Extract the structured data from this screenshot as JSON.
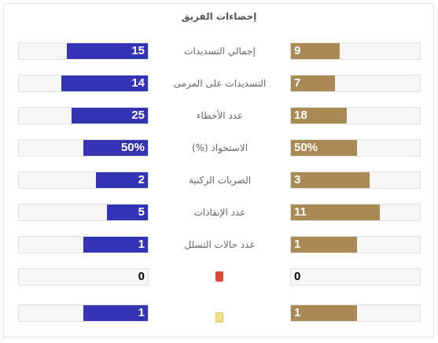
{
  "title": "إحصاءات الفريق",
  "colors": {
    "left_team": "#3333b3",
    "right_team": "#a98a55",
    "red_card": "#d94a3d",
    "yellow_card": "#f1e385"
  },
  "rows": [
    {
      "label": "إجمالي التسديدات",
      "left": "15",
      "right": "9",
      "left_fill_pct": 63,
      "right_fill_pct": 38
    },
    {
      "label": "التسديدات على المرمى",
      "left": "14",
      "right": "7",
      "left_fill_pct": 67,
      "right_fill_pct": 34
    },
    {
      "label": "عدد الأخطاء",
      "left": "25",
      "right": "18",
      "left_fill_pct": 59,
      "right_fill_pct": 43
    },
    {
      "label": "الاستحواذ (%)",
      "left": "50%",
      "right": "50%",
      "left_fill_pct": 50,
      "right_fill_pct": 51
    },
    {
      "label": "الضربات الركنية",
      "left": "2",
      "right": "3",
      "left_fill_pct": 40,
      "right_fill_pct": 61
    },
    {
      "label": "عدد الإنقاذات",
      "left": "5",
      "right": "11",
      "left_fill_pct": 32,
      "right_fill_pct": 69
    },
    {
      "label": "عدد حالات التسلل",
      "left": "1",
      "right": "1",
      "left_fill_pct": 50,
      "right_fill_pct": 51
    },
    {
      "label_icon": "red-card-icon",
      "left": "0",
      "right": "0",
      "left_fill_pct": 0,
      "right_fill_pct": 0
    },
    {
      "label_icon": "yellow-card-icon",
      "left": "1",
      "right": "1",
      "left_fill_pct": 50,
      "right_fill_pct": 51
    }
  ]
}
